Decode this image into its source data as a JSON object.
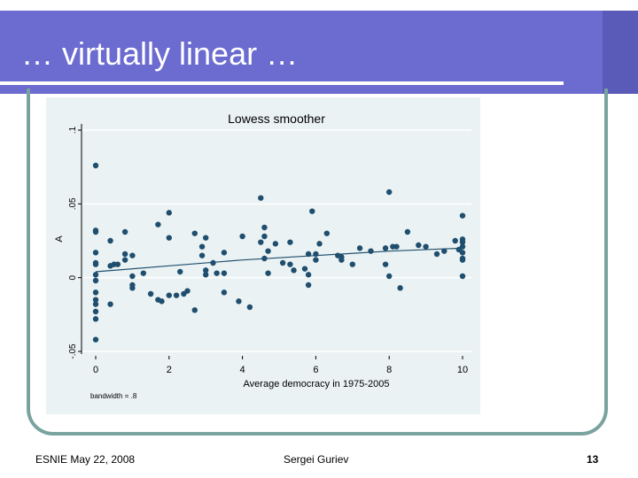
{
  "slide": {
    "title": "… virtually linear …",
    "footer_left": "ESNIE May 22, 2008",
    "footer_center": "Sergei Guriev",
    "page_number": "13",
    "colors": {
      "title_bar": "#6b6bd0",
      "frame": "#7aa39f",
      "plot_bg": "#eaf2f3",
      "marker": "#1f4e6e"
    }
  },
  "chart_data": {
    "type": "scatter",
    "title": "Lowess smoother",
    "xlabel": "Average democracy in 1975-2005",
    "ylabel": "A",
    "note": "bandwidth = .8",
    "xlim": [
      0,
      10
    ],
    "ylim": [
      -0.05,
      0.1
    ],
    "x_ticks": [
      0,
      2,
      4,
      6,
      8,
      10
    ],
    "y_ticks": [
      -0.05,
      0,
      0.05,
      0.1
    ],
    "y_tick_labels": [
      "-.05",
      "0",
      ".05",
      ".1"
    ],
    "grid": true,
    "points": [
      {
        "x": 0.0,
        "y": -0.042
      },
      {
        "x": 0.0,
        "y": 0.076
      },
      {
        "x": 0.0,
        "y": 0.032
      },
      {
        "x": 0.0,
        "y": 0.01
      },
      {
        "x": 0.0,
        "y": 0.009
      },
      {
        "x": 0.0,
        "y": 0.002
      },
      {
        "x": 0.0,
        "y": -0.002
      },
      {
        "x": 0.0,
        "y": -0.01
      },
      {
        "x": 0.0,
        "y": -0.015
      },
      {
        "x": 0.0,
        "y": -0.018
      },
      {
        "x": 0.0,
        "y": -0.023
      },
      {
        "x": 0.0,
        "y": -0.028
      },
      {
        "x": 0.0,
        "y": 0.017
      },
      {
        "x": 0.0,
        "y": 0.031
      },
      {
        "x": 0.4,
        "y": 0.025
      },
      {
        "x": 0.4,
        "y": 0.008
      },
      {
        "x": 0.4,
        "y": -0.018
      },
      {
        "x": 0.5,
        "y": 0.009
      },
      {
        "x": 0.6,
        "y": 0.009
      },
      {
        "x": 0.8,
        "y": 0.016
      },
      {
        "x": 0.8,
        "y": 0.012
      },
      {
        "x": 0.8,
        "y": 0.031
      },
      {
        "x": 1.0,
        "y": 0.001
      },
      {
        "x": 1.0,
        "y": -0.005
      },
      {
        "x": 1.0,
        "y": -0.007
      },
      {
        "x": 1.0,
        "y": 0.015
      },
      {
        "x": 1.3,
        "y": 0.003
      },
      {
        "x": 1.5,
        "y": -0.011
      },
      {
        "x": 1.7,
        "y": 0.036
      },
      {
        "x": 1.7,
        "y": -0.015
      },
      {
        "x": 1.8,
        "y": -0.016
      },
      {
        "x": 2.0,
        "y": 0.044
      },
      {
        "x": 2.0,
        "y": 0.027
      },
      {
        "x": 2.0,
        "y": -0.012
      },
      {
        "x": 2.2,
        "y": -0.012
      },
      {
        "x": 2.3,
        "y": 0.004
      },
      {
        "x": 2.4,
        "y": -0.011
      },
      {
        "x": 2.5,
        "y": -0.009
      },
      {
        "x": 2.7,
        "y": -0.022
      },
      {
        "x": 2.7,
        "y": 0.03
      },
      {
        "x": 2.9,
        "y": 0.021
      },
      {
        "x": 2.9,
        "y": 0.015
      },
      {
        "x": 3.0,
        "y": 0.027
      },
      {
        "x": 3.0,
        "y": 0.005
      },
      {
        "x": 3.0,
        "y": 0.002
      },
      {
        "x": 3.2,
        "y": 0.01
      },
      {
        "x": 3.3,
        "y": 0.003
      },
      {
        "x": 3.5,
        "y": 0.017
      },
      {
        "x": 3.5,
        "y": 0.003
      },
      {
        "x": 3.5,
        "y": -0.01
      },
      {
        "x": 3.9,
        "y": -0.016
      },
      {
        "x": 4.0,
        "y": 0.028
      },
      {
        "x": 4.2,
        "y": -0.02
      },
      {
        "x": 4.5,
        "y": 0.054
      },
      {
        "x": 4.5,
        "y": 0.024
      },
      {
        "x": 4.6,
        "y": 0.028
      },
      {
        "x": 4.6,
        "y": 0.034
      },
      {
        "x": 4.6,
        "y": 0.013
      },
      {
        "x": 4.7,
        "y": 0.018
      },
      {
        "x": 4.7,
        "y": 0.003
      },
      {
        "x": 4.9,
        "y": 0.023
      },
      {
        "x": 5.1,
        "y": 0.01
      },
      {
        "x": 5.3,
        "y": 0.009
      },
      {
        "x": 5.3,
        "y": 0.024
      },
      {
        "x": 5.4,
        "y": 0.005
      },
      {
        "x": 5.7,
        "y": 0.006
      },
      {
        "x": 5.8,
        "y": 0.016
      },
      {
        "x": 5.8,
        "y": 0.002
      },
      {
        "x": 5.8,
        "y": -0.005
      },
      {
        "x": 5.9,
        "y": 0.045
      },
      {
        "x": 6.0,
        "y": 0.012
      },
      {
        "x": 6.0,
        "y": 0.016
      },
      {
        "x": 6.1,
        "y": 0.023
      },
      {
        "x": 6.3,
        "y": 0.03
      },
      {
        "x": 6.6,
        "y": 0.015
      },
      {
        "x": 6.7,
        "y": 0.014
      },
      {
        "x": 6.7,
        "y": 0.012
      },
      {
        "x": 7.0,
        "y": 0.009
      },
      {
        "x": 7.2,
        "y": 0.02
      },
      {
        "x": 7.5,
        "y": 0.018
      },
      {
        "x": 7.9,
        "y": 0.02
      },
      {
        "x": 7.9,
        "y": 0.009
      },
      {
        "x": 8.0,
        "y": 0.058
      },
      {
        "x": 8.0,
        "y": 0.001
      },
      {
        "x": 8.1,
        "y": 0.021
      },
      {
        "x": 8.2,
        "y": 0.021
      },
      {
        "x": 8.3,
        "y": -0.007
      },
      {
        "x": 8.5,
        "y": 0.031
      },
      {
        "x": 8.8,
        "y": 0.022
      },
      {
        "x": 9.0,
        "y": 0.021
      },
      {
        "x": 9.3,
        "y": 0.016
      },
      {
        "x": 9.5,
        "y": 0.018
      },
      {
        "x": 9.8,
        "y": 0.025
      },
      {
        "x": 9.9,
        "y": 0.019
      },
      {
        "x": 10.0,
        "y": 0.042
      },
      {
        "x": 10.0,
        "y": 0.026
      },
      {
        "x": 10.0,
        "y": 0.024
      },
      {
        "x": 10.0,
        "y": 0.021
      },
      {
        "x": 10.0,
        "y": 0.017
      },
      {
        "x": 10.0,
        "y": 0.013
      },
      {
        "x": 10.0,
        "y": 0.012
      },
      {
        "x": 10.0,
        "y": 0.001
      }
    ],
    "lowess": [
      {
        "x": 0,
        "y": 0.004
      },
      {
        "x": 2,
        "y": 0.008
      },
      {
        "x": 4,
        "y": 0.012
      },
      {
        "x": 6,
        "y": 0.015
      },
      {
        "x": 8,
        "y": 0.018
      },
      {
        "x": 10,
        "y": 0.02
      }
    ]
  }
}
